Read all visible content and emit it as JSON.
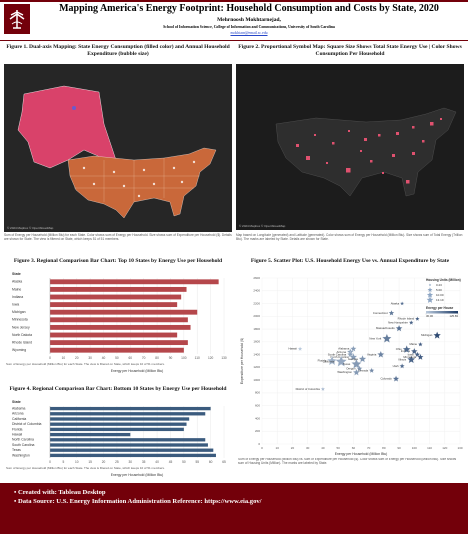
{
  "header": {
    "title": "Mapping America's Energy Footprint: Household Consumption and Costs by State, 2020",
    "author": "Mehrnoosh Mokhtarnejad,",
    "affiliation": "School of Information Science, College of Information and Communications, University of South Carolina",
    "email": "mokhtarn@email.sc.edu"
  },
  "figures": [
    {
      "title": "Figure 1. Dual-axis Mapping: State Energy Consumption (filled color) and Annual Household Expenditure (bubble size)",
      "map_credit": "© 2024 Mapbox © OpenStreetMap",
      "caption": "Sum of Energy per Household (Million Btu) for each State. Color shows sum of Energy per Household. Size shows sum of Expenditure per Household ($). Details are shown for State. The view is filtered on State, which keeps 51 of 51 members."
    },
    {
      "title": "Figure 2. Proportional Symbol Map: Square Size Shows Total State Energy Use | Color Shows Consumption Per Household",
      "map_credit": "© 2024 Mapbox © OpenStreetMap",
      "caption": "Map based on Longitude (generated) and Latitude (generated). Color shows sum of Energy per Household (Million Btu). Size shows sum of Total Energy (Trillion Btu). The marks are labeled by State. Details are shown for State."
    },
    {
      "title": "Figure 3. Regional Comparison Bar Chart: Top 10 States by Energy Use per Household",
      "caption": "Sum of Energy per Household (Million Btu) for each State. The view is filtered on State, which keeps 10 of 51 members.",
      "chart": {
        "type": "bar",
        "orientation": "horizontal",
        "category_title": "State",
        "x_label": "Energy per Household (Million Btu)",
        "categories": [
          "Alaska",
          "Maine",
          "Indiana",
          "Iowa",
          "Michigan",
          "Minnesota",
          "New Jersey",
          "North Dakota",
          "Rhode Island",
          "Wyoming"
        ],
        "values": [
          126,
          102,
          98,
          95,
          110,
          103,
          105,
          95,
          103,
          100
        ],
        "color": "#b5474b",
        "xlim": [
          0,
          130
        ],
        "xticks": [
          0,
          10,
          20,
          30,
          40,
          50,
          60,
          70,
          80,
          90,
          100,
          110,
          120,
          130
        ],
        "grid": true
      }
    },
    {
      "title": "Figure 4. Regional Comparison Bar Chart: Bottom 10 States by Energy Use per Household",
      "caption": "Sum of Energy per Household (Million Btu) for each State. The view is filtered on State, which keeps 10 of 51 members.",
      "chart": {
        "type": "bar",
        "orientation": "horizontal",
        "category_title": "State",
        "x_label": "Energy per Household (Million Btu)",
        "categories": [
          "Alabama",
          "Arizona",
          "California",
          "District of Columbia",
          "Florida",
          "Hawaii",
          "North Carolina",
          "South Carolina",
          "Texas",
          "Washington"
        ],
        "values": [
          60,
          58,
          52,
          51,
          50,
          30,
          58,
          59,
          61,
          62
        ],
        "color": "#3b5b7e",
        "xlim": [
          0,
          65
        ],
        "xticks": [
          0,
          5,
          10,
          15,
          20,
          25,
          30,
          35,
          40,
          45,
          50,
          55,
          60,
          65
        ],
        "grid": true
      }
    },
    {
      "title": "Figure 5. Scatter Plot: U.S. Household Energy Use vs. Annual Expenditure by State",
      "caption": "Sum of Energy per Household (Million Btu) vs. sum of Expenditure per Household ($). Color shows sum of Energy per Household (Million Btu). Size shows sum of Housing Units (Million). The marks are labeled by State.",
      "chart": {
        "type": "scatter",
        "x_label": "Energy per Household (Million Btu)",
        "y_label": "Expenditure per Household ($)",
        "labels": [
          "Alaska",
          "Connecticut",
          "Rhode Island",
          "New Hampshire",
          "Massachusetts",
          "Michigan",
          "New York",
          "Hawaii",
          "Maine",
          "Alabama",
          "Arizona",
          "South Carolina",
          "North Carolina",
          "Florida",
          "California",
          "Texas",
          "Georgia",
          "Virginia",
          "Indiana",
          "Ohio",
          "Iowa",
          "Illinois",
          "Minnesota",
          "Utah",
          "Oregon",
          "Washington",
          "Nevada",
          "Colorado",
          "District of Columbia"
        ],
        "x": [
          92,
          85,
          102,
          98,
          90,
          115,
          82,
          25,
          104,
          60,
          58,
          58,
          60,
          46,
          52,
          62,
          66,
          78,
          100,
          95,
          102,
          98,
          104,
          92,
          64,
          62,
          72,
          88,
          40
        ],
        "y": [
          2200,
          2050,
          1960,
          1900,
          1810,
          1700,
          1650,
          1490,
          1560,
          1490,
          1440,
          1400,
          1360,
          1300,
          1290,
          1250,
          1330,
          1400,
          1450,
          1480,
          1400,
          1320,
          1360,
          1220,
          1180,
          1120,
          1150,
          1020,
          860
        ],
        "sizes": [
          0.23,
          1.4,
          0.44,
          0.54,
          2.7,
          4.0,
          7.3,
          0.47,
          0.58,
          1.9,
          2.6,
          2.0,
          4.0,
          8.4,
          13.19,
          9.9,
          3.8,
          3.2,
          2.6,
          4.7,
          1.3,
          4.9,
          2.2,
          1.0,
          1.6,
          2.9,
          1.1,
          2.2,
          0.3
        ],
        "color_range": [
          "#b9c9dc",
          "#1d3b66"
        ],
        "xlim": [
          0,
          130
        ],
        "xticks": [
          0,
          10,
          20,
          30,
          40,
          50,
          60,
          70,
          80,
          90,
          100,
          110,
          120,
          130
        ],
        "ylim": [
          0,
          2600
        ],
        "yticks": [
          0,
          200,
          400,
          600,
          800,
          1000,
          1200,
          1400,
          1600,
          1800,
          2000,
          2200,
          2400,
          2600
        ],
        "grid": true,
        "size_legend": {
          "title": "Housing Units (Million)",
          "values": [
            0.23,
            {
              "value": 5,
              "label": "5.00"
            },
            {
              "value": 10,
              "label": "10.00"
            },
            13.19
          ]
        },
        "color_legend": {
          "title": "Energy per House",
          "values": [
            {
              "value": 30,
              "label": "30.00"
            },
            {
              "value": 125.83,
              "label": "125.83"
            }
          ]
        }
      }
    }
  ],
  "footer": {
    "items": [
      "Created with: Tableau Desktop",
      "Data Source: U.S. Energy Information Administration Reference: https://www.eia.gov/"
    ]
  }
}
